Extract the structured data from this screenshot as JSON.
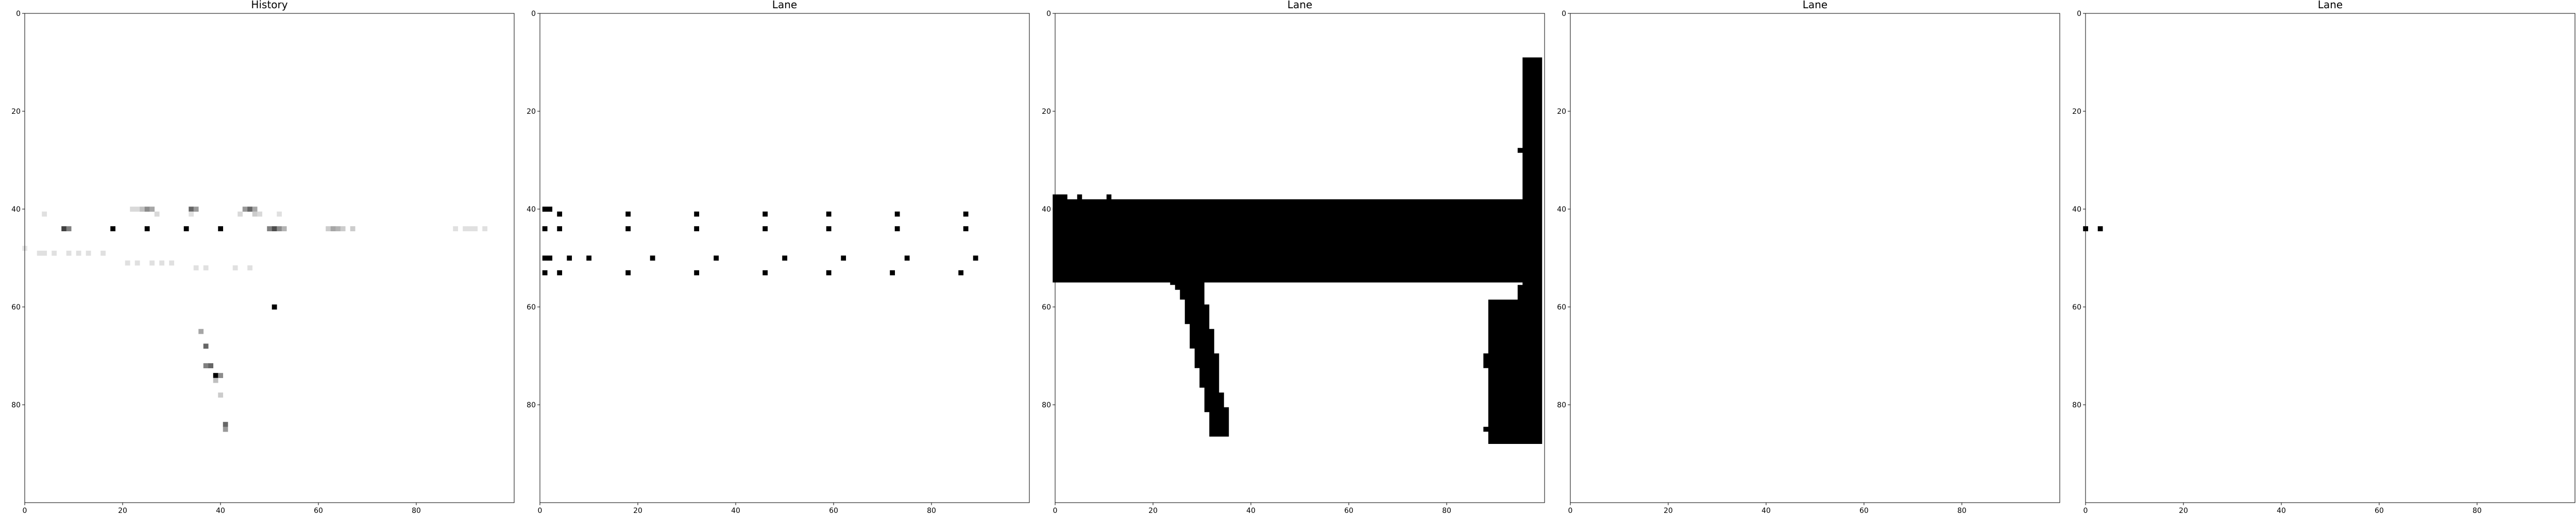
{
  "chart_data": [
    {
      "type": "heatmap",
      "title": "History",
      "xlim": [
        0,
        100
      ],
      "ylim": [
        100,
        0
      ],
      "xticks": [
        0,
        20,
        40,
        60,
        80
      ],
      "yticks": [
        0,
        20,
        40,
        60,
        80
      ],
      "colormap": "grayscale (dark = high)",
      "cells": [
        [
          22,
          40,
          0.15
        ],
        [
          23,
          40,
          0.15
        ],
        [
          24,
          40,
          0.25
        ],
        [
          25,
          40,
          0.45
        ],
        [
          26,
          40,
          0.35
        ],
        [
          34,
          40,
          0.6
        ],
        [
          35,
          40,
          0.4
        ],
        [
          45,
          40,
          0.4
        ],
        [
          46,
          40,
          0.6
        ],
        [
          47,
          40,
          0.35
        ],
        [
          4,
          41,
          0.12
        ],
        [
          27,
          41,
          0.15
        ],
        [
          34,
          41,
          0.12
        ],
        [
          44,
          41,
          0.15
        ],
        [
          47,
          41,
          0.2
        ],
        [
          48,
          41,
          0.15
        ],
        [
          52,
          41,
          0.12
        ],
        [
          8,
          44,
          0.75
        ],
        [
          9,
          44,
          0.5
        ],
        [
          18,
          44,
          1
        ],
        [
          25,
          44,
          1
        ],
        [
          33,
          44,
          1
        ],
        [
          40,
          44,
          1
        ],
        [
          50,
          44,
          0.5
        ],
        [
          51,
          44,
          0.7
        ],
        [
          52,
          44,
          0.45
        ],
        [
          53,
          44,
          0.3
        ],
        [
          62,
          44,
          0.2
        ],
        [
          63,
          44,
          0.35
        ],
        [
          64,
          44,
          0.3
        ],
        [
          65,
          44,
          0.2
        ],
        [
          67,
          44,
          0.2
        ],
        [
          88,
          44,
          0.12
        ],
        [
          90,
          44,
          0.12
        ],
        [
          91,
          44,
          0.12
        ],
        [
          92,
          44,
          0.12
        ],
        [
          94,
          44,
          0.12
        ],
        [
          0,
          48,
          0.1
        ],
        [
          3,
          49,
          0.12
        ],
        [
          4,
          49,
          0.12
        ],
        [
          6,
          49,
          0.12
        ],
        [
          9,
          49,
          0.12
        ],
        [
          11,
          49,
          0.12
        ],
        [
          13,
          49,
          0.12
        ],
        [
          16,
          49,
          0.12
        ],
        [
          21,
          51,
          0.12
        ],
        [
          23,
          51,
          0.12
        ],
        [
          26,
          51,
          0.12
        ],
        [
          28,
          51,
          0.12
        ],
        [
          30,
          51,
          0.12
        ],
        [
          35,
          52,
          0.12
        ],
        [
          37,
          52,
          0.12
        ],
        [
          43,
          52,
          0.12
        ],
        [
          46,
          52,
          0.12
        ],
        [
          51,
          60,
          1
        ],
        [
          36,
          65,
          0.35
        ],
        [
          37,
          68,
          0.6
        ],
        [
          37,
          72,
          0.5
        ],
        [
          38,
          72,
          0.6
        ],
        [
          39,
          74,
          1
        ],
        [
          40,
          74,
          0.45
        ],
        [
          39,
          75,
          0.25
        ],
        [
          40,
          78,
          0.2
        ],
        [
          41,
          84,
          0.6
        ],
        [
          41,
          85,
          0.4
        ]
      ]
    },
    {
      "type": "heatmap",
      "title": "Lane",
      "xlim": [
        0,
        100
      ],
      "ylim": [
        100,
        0
      ],
      "xticks": [
        0,
        20,
        40,
        60,
        80
      ],
      "yticks": [
        0,
        20,
        40,
        60,
        80
      ],
      "colormap": "grayscale (dark = high)",
      "cells": [
        [
          1,
          40,
          1
        ],
        [
          2,
          40,
          1
        ],
        [
          4,
          41,
          1
        ],
        [
          18,
          41,
          1
        ],
        [
          32,
          41,
          1
        ],
        [
          46,
          41,
          1
        ],
        [
          59,
          41,
          1
        ],
        [
          73,
          41,
          1
        ],
        [
          87,
          41,
          1
        ],
        [
          1,
          44,
          1
        ],
        [
          4,
          44,
          1
        ],
        [
          18,
          44,
          1
        ],
        [
          32,
          44,
          1
        ],
        [
          46,
          44,
          1
        ],
        [
          59,
          44,
          1
        ],
        [
          73,
          44,
          1
        ],
        [
          87,
          44,
          1
        ],
        [
          1,
          50,
          1
        ],
        [
          2,
          50,
          1
        ],
        [
          6,
          50,
          1
        ],
        [
          10,
          50,
          1
        ],
        [
          23,
          50,
          1
        ],
        [
          36,
          50,
          1
        ],
        [
          50,
          50,
          1
        ],
        [
          62,
          50,
          1
        ],
        [
          75,
          50,
          1
        ],
        [
          89,
          50,
          1
        ],
        [
          1,
          53,
          1
        ],
        [
          4,
          53,
          1
        ],
        [
          18,
          53,
          1
        ],
        [
          32,
          53,
          1
        ],
        [
          46,
          53,
          1
        ],
        [
          59,
          53,
          1
        ],
        [
          72,
          53,
          1
        ],
        [
          86,
          53,
          1
        ]
      ]
    },
    {
      "type": "heatmap",
      "title": "Lane",
      "xlim": [
        0,
        100
      ],
      "ylim": [
        100,
        0
      ],
      "xticks": [
        0,
        20,
        40,
        60,
        80
      ],
      "yticks": [
        0,
        20,
        40,
        60,
        80
      ],
      "colormap": "grayscale (dark = high)",
      "regions": [
        [
          [
            0,
            37.5
          ],
          [
            3,
            37.5
          ],
          [
            3,
            38.5
          ],
          [
            5,
            38.5
          ],
          [
            5,
            37.5
          ],
          [
            6,
            37.5
          ],
          [
            6,
            38.5
          ],
          [
            11,
            38.5
          ],
          [
            11,
            37.5
          ],
          [
            12,
            37.5
          ],
          [
            12,
            38.5
          ],
          [
            97,
            38.5
          ],
          [
            97,
            55.5
          ],
          [
            0,
            55.5
          ]
        ],
        [
          [
            24,
            55.5
          ],
          [
            31,
            55.5
          ],
          [
            31,
            60
          ],
          [
            32,
            60
          ],
          [
            32,
            65
          ],
          [
            33,
            65
          ],
          [
            33,
            70
          ],
          [
            34,
            70
          ],
          [
            34,
            78
          ],
          [
            35,
            78
          ],
          [
            35,
            81
          ],
          [
            36,
            81
          ],
          [
            36,
            87
          ],
          [
            32,
            87
          ],
          [
            32,
            82
          ],
          [
            31,
            82
          ],
          [
            31,
            77
          ],
          [
            30,
            77
          ],
          [
            30,
            73
          ],
          [
            29,
            73
          ],
          [
            29,
            69
          ],
          [
            28,
            69
          ],
          [
            28,
            64
          ],
          [
            27,
            64
          ],
          [
            27,
            59
          ],
          [
            26,
            59
          ],
          [
            26,
            57
          ],
          [
            25,
            57
          ],
          [
            25,
            56
          ],
          [
            24,
            56
          ]
        ],
        [
          [
            96,
            9.5
          ],
          [
            100,
            9.5
          ],
          [
            100,
            88.5
          ],
          [
            89,
            88.5
          ],
          [
            89,
            86
          ],
          [
            88,
            86
          ],
          [
            88,
            85
          ],
          [
            89,
            85
          ],
          [
            89,
            73
          ],
          [
            88,
            73
          ],
          [
            88,
            70
          ],
          [
            89,
            70
          ],
          [
            89,
            59
          ],
          [
            95,
            59
          ],
          [
            95,
            56
          ],
          [
            96,
            56
          ],
          [
            96,
            29
          ],
          [
            95,
            29
          ],
          [
            95,
            28
          ],
          [
            96,
            28
          ]
        ]
      ]
    },
    {
      "type": "heatmap",
      "title": "Lane",
      "xlim": [
        0,
        100
      ],
      "ylim": [
        100,
        0
      ],
      "xticks": [
        0,
        20,
        40,
        60,
        80
      ],
      "yticks": [
        0,
        20,
        40,
        60,
        80
      ],
      "colormap": "grayscale (dark = high)",
      "cells": []
    },
    {
      "type": "heatmap",
      "title": "Lane",
      "xlim": [
        0,
        100
      ],
      "ylim": [
        100,
        0
      ],
      "xticks": [
        0,
        20,
        40,
        60,
        80
      ],
      "yticks": [
        0,
        20,
        40,
        60,
        80
      ],
      "colormap": "grayscale (dark = high)",
      "cells": [
        [
          0,
          44,
          1
        ],
        [
          3,
          44,
          1
        ]
      ]
    }
  ]
}
